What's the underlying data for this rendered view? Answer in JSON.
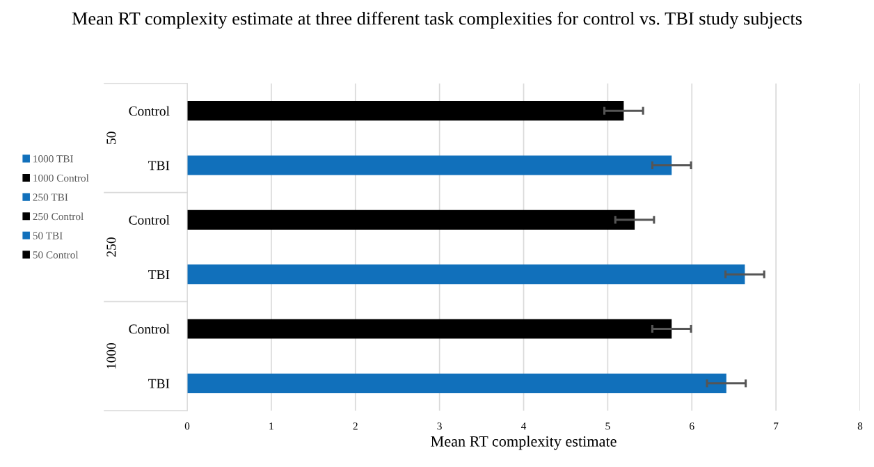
{
  "chart_data": {
    "type": "bar",
    "orientation": "horizontal",
    "title": "Mean RT complexity estimate at three different task complexities for control vs. TBI study subjects",
    "xlabel": "Mean RT complexity estimate",
    "categories": [
      "Control",
      "TBI",
      "Control",
      "TBI",
      "Control",
      "TBI"
    ],
    "annotations": [
      "50",
      "250",
      "1000"
    ],
    "series": [
      {
        "name": "1000 TBI",
        "color": "#1170bb",
        "values": [
          null,
          null,
          null,
          null,
          null,
          6.41
        ],
        "errors": [
          null,
          null,
          null,
          null,
          null,
          0.23
        ]
      },
      {
        "name": "1000 Control",
        "color": "#000000",
        "values": [
          null,
          null,
          null,
          null,
          5.76,
          null
        ],
        "errors": [
          null,
          null,
          null,
          null,
          0.23,
          null
        ]
      },
      {
        "name": "250 TBI",
        "color": "#1170bb",
        "values": [
          null,
          null,
          null,
          6.63,
          null,
          null
        ],
        "errors": [
          null,
          null,
          null,
          0.23,
          null,
          null
        ]
      },
      {
        "name": "250 Control",
        "color": "#000000",
        "values": [
          null,
          null,
          5.32,
          null,
          null,
          null
        ],
        "errors": [
          null,
          null,
          0.23,
          null,
          null,
          null
        ]
      },
      {
        "name": "50 TBI",
        "color": "#1170bb",
        "values": [
          null,
          5.76,
          null,
          null,
          null,
          null
        ],
        "errors": [
          null,
          0.23,
          null,
          null,
          null,
          null
        ]
      },
      {
        "name": "50 Control",
        "color": "#000000",
        "values": [
          5.19,
          null,
          null,
          null,
          null,
          null
        ],
        "errors": [
          0.23,
          null,
          null,
          null,
          null,
          null
        ]
      }
    ],
    "xlim": [
      0,
      8
    ],
    "xticks": [
      0,
      1,
      2,
      3,
      4,
      5,
      6,
      7,
      8
    ],
    "grid": "x",
    "legend": "left"
  }
}
